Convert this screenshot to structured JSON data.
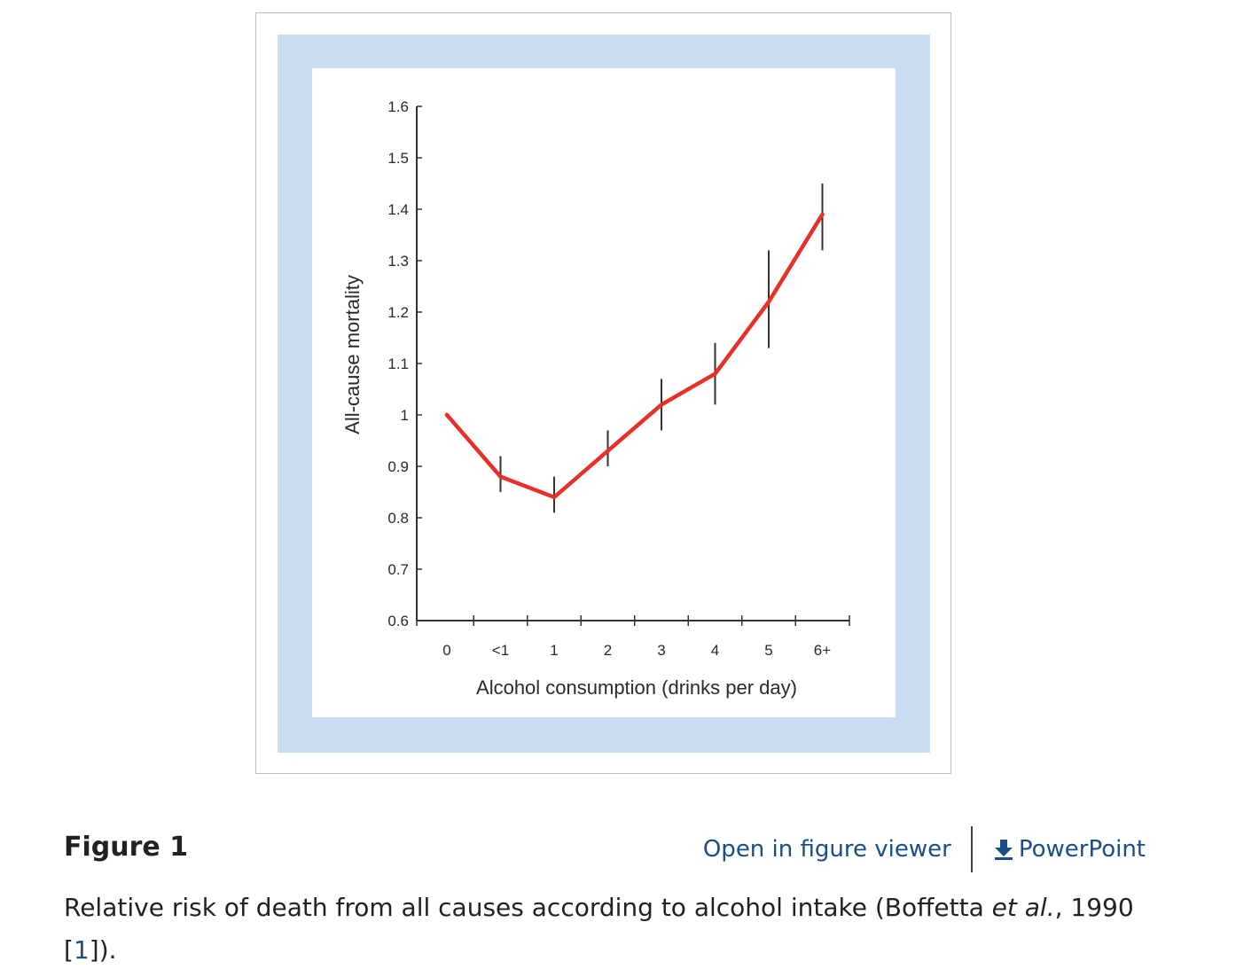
{
  "figure": {
    "label": "Figure 1",
    "open_viewer_label": "Open in figure viewer",
    "powerpoint_label": "PowerPoint",
    "download_icon": "download-arrow-icon",
    "caption": {
      "before": "Relative risk of death from all causes according to alcohol intake (Boffetta ",
      "italic": "et al.",
      "middle": ", 1990 [",
      "ref": "1",
      "after": "])."
    }
  },
  "colors": {
    "frame_fill": "#c9dcf0",
    "line": "#e8302b",
    "error_bar": "#333333",
    "link": "#1a4e86"
  },
  "chart_data": {
    "type": "line",
    "title": "",
    "xlabel": "Alcohol consumption (drinks per day)",
    "ylabel": "All-cause mortality",
    "ylim": [
      0.6,
      1.6
    ],
    "yticks": [
      "0.6",
      "0.7",
      "0.8",
      "0.9",
      "1",
      "1.1",
      "1.2",
      "1.3",
      "1.4",
      "1.5",
      "1.6"
    ],
    "categories": [
      "0",
      "<1",
      "1",
      "2",
      "3",
      "4",
      "5",
      "6+"
    ],
    "series": [
      {
        "values": [
          1.0,
          0.88,
          0.84,
          0.93,
          1.02,
          1.08,
          1.22,
          1.39
        ],
        "ci_low": [
          null,
          0.85,
          0.81,
          0.9,
          0.97,
          1.02,
          1.13,
          1.32
        ],
        "ci_high": [
          null,
          0.92,
          0.88,
          0.97,
          1.07,
          1.14,
          1.32,
          1.45
        ]
      }
    ],
    "grid": false,
    "legend": "none"
  }
}
